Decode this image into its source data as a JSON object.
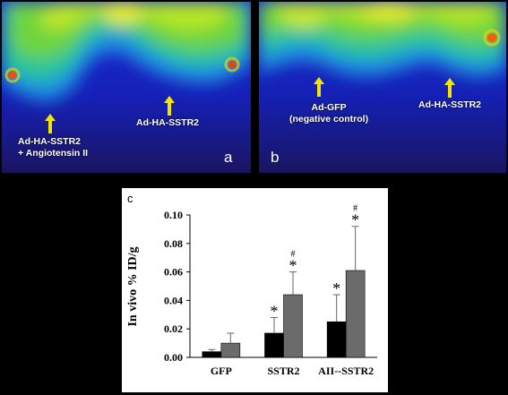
{
  "panels": {
    "a": {
      "letter": "a",
      "label_left_line1": "Ad-HA-SSTR2",
      "label_left_line2": "+ Angiotensin II",
      "label_right": "Ad-HA-SSTR2"
    },
    "b": {
      "letter": "b",
      "label_left_line1": "Ad-GFP",
      "label_left_line2": "(negative control)",
      "label_right": "Ad-HA-SSTR2"
    }
  },
  "colors": {
    "arrow": "#f2e600",
    "bar_dark": "#000000",
    "bar_gray": "#6b6b6b"
  },
  "chart_data": {
    "type": "bar",
    "panel_letter": "c",
    "ylabel": "In vivo % ID/g",
    "ylim": [
      0,
      0.1
    ],
    "yticks": [
      "0.00",
      "0.02",
      "0.04",
      "0.06",
      "0.08",
      "0.10"
    ],
    "categories": [
      "GFP",
      "SSTR2",
      "AII--SSTR2"
    ],
    "series": [
      {
        "values": [
          0.004,
          0.017,
          0.025
        ],
        "errors": [
          0.0015,
          0.011,
          0.019
        ]
      },
      {
        "values": [
          0.01,
          0.044,
          0.061
        ],
        "errors": [
          0.007,
          0.016,
          0.031
        ]
      }
    ],
    "annotations": {
      "series0": [
        "",
        "*",
        "*"
      ],
      "series1_star": [
        "",
        "*",
        "*"
      ],
      "series1_hash": [
        "",
        "#",
        "#"
      ]
    }
  }
}
